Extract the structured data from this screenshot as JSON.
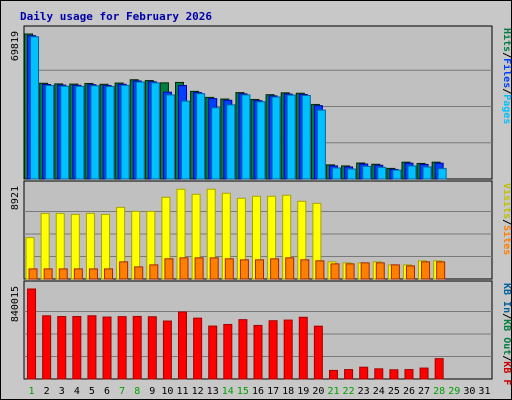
{
  "chart_data": {
    "type": "bar",
    "title": "Daily usage for February 2026",
    "days": [
      "1",
      "2",
      "3",
      "4",
      "5",
      "6",
      "7",
      "8",
      "9",
      "10",
      "11",
      "12",
      "13",
      "14",
      "15",
      "16",
      "17",
      "18",
      "19",
      "20",
      "21",
      "22",
      "23",
      "24",
      "25",
      "26",
      "27",
      "28",
      "29",
      "30",
      "31"
    ],
    "weekend_days": [
      "1",
      "7",
      "8",
      "14",
      "15",
      "21",
      "22",
      "28",
      "29"
    ],
    "panels": [
      {
        "name": "requests",
        "max_label": "69819",
        "ymax": 69819,
        "legend": [
          {
            "text": "Hits",
            "color": "#008040"
          },
          {
            "text": "/",
            "color": "#000000"
          },
          {
            "text": "Files",
            "color": "#0040ff"
          },
          {
            "text": "/",
            "color": "#000000"
          },
          {
            "text": "Pages",
            "color": "#00c0ff"
          }
        ],
        "series": [
          {
            "name": "Hits",
            "color": "#008040",
            "values": [
              69819,
              46100,
              45800,
              45700,
              46000,
              45600,
              46200,
              47800,
              47400,
              46300,
              46500,
              42200,
              39300,
              38500,
              41600,
              38300,
              40600,
              41500,
              41300,
              35900,
              6800,
              6300,
              7700,
              7100,
              5100,
              8100,
              7500,
              8100,
              null,
              null,
              null
            ]
          },
          {
            "name": "Files",
            "color": "#0040ff",
            "values": [
              69000,
              45500,
              45200,
              45100,
              45400,
              45000,
              45600,
              47200,
              46800,
              41800,
              45000,
              41600,
              38700,
              37900,
              41000,
              37700,
              40000,
              40900,
              40700,
              35300,
              6300,
              5800,
              7200,
              6600,
              4600,
              7600,
              7000,
              7600,
              null,
              null,
              null
            ]
          },
          {
            "name": "Pages",
            "color": "#00c0ff",
            "values": [
              68500,
              45000,
              44700,
              44600,
              44900,
              44500,
              45100,
              46700,
              46300,
              40500,
              37500,
              41100,
              34300,
              35700,
              40500,
              37200,
              39500,
              40400,
              40200,
              33200,
              5300,
              4800,
              6100,
              5600,
              4300,
              6300,
              5800,
              5000,
              null,
              null,
              null
            ]
          }
        ]
      },
      {
        "name": "visitors",
        "max_label": "8921",
        "ymax": 8921,
        "legend": [
          {
            "text": "Visits",
            "color": "#c0c000"
          },
          {
            "text": "/",
            "color": "#000000"
          },
          {
            "text": "Sites",
            "color": "#ff8000"
          }
        ],
        "series": [
          {
            "name": "Visits",
            "color": "#ffff00",
            "values": [
              4100,
              6500,
              6500,
              6400,
              6500,
              6400,
              7100,
              6700,
              6700,
              8100,
              8900,
              8400,
              8900,
              8500,
              8000,
              8200,
              8200,
              8300,
              7700,
              7500,
              1700,
              1600,
              1600,
              1700,
              1400,
              1400,
              1800,
              1800,
              null,
              null,
              null
            ]
          },
          {
            "name": "Sites",
            "color": "#ff8000",
            "values": [
              1000,
              1000,
              1000,
              1000,
              1000,
              1000,
              1700,
              1200,
              1400,
              2000,
              2100,
              2100,
              2100,
              2000,
              1900,
              1900,
              2000,
              2100,
              1900,
              1800,
              1500,
              1500,
              1600,
              1600,
              1400,
              1300,
              1700,
              1700,
              null,
              null,
              null
            ]
          }
        ]
      },
      {
        "name": "traffic",
        "max_label": "840015",
        "ymax": 840015,
        "legend": [
          {
            "text": "KB In",
            "color": "#0060a0"
          },
          {
            "text": "/",
            "color": "#000000"
          },
          {
            "text": "KB Out",
            "color": "#008040"
          },
          {
            "text": "/",
            "color": "#000000"
          },
          {
            "text": "KB F",
            "color": "#d00000"
          }
        ],
        "series": [
          {
            "name": "KB F",
            "color": "#ff0000",
            "values": [
              840015,
              590000,
              583000,
              583000,
              590000,
              578000,
              582000,
              584000,
              581000,
              541000,
              625000,
              568000,
              494000,
              509000,
              554000,
              500000,
              544000,
              550000,
              576000,
              493000,
              80000,
              88000,
              110000,
              95000,
              86000,
              88000,
              102000,
              190000,
              null,
              null,
              null
            ]
          }
        ]
      }
    ]
  }
}
